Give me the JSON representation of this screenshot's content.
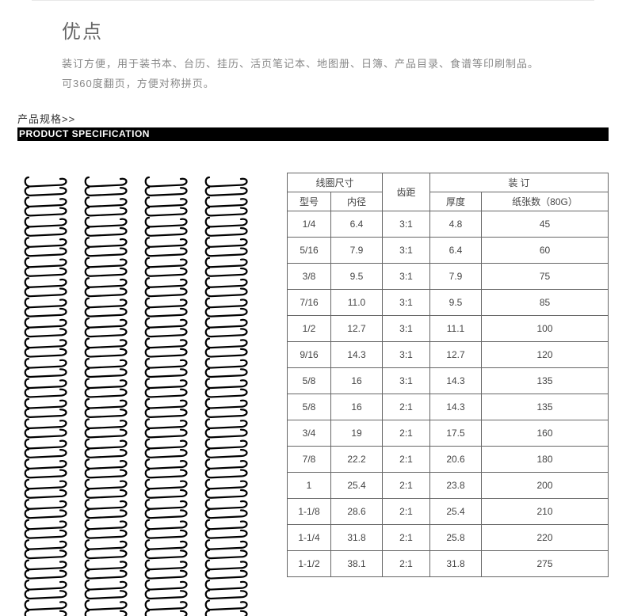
{
  "title": "优点",
  "description_line1": "装订方便，用于装书本、台历、挂历、活页笔记本、地图册、日簿、产品目录、食谱等印刷制品。",
  "description_line2": "可360度翻页，方便对称拼页。",
  "spec_label_cn": "产品规格>>",
  "spec_label_en": "PRODUCT SPECIFICATION",
  "table": {
    "group_headers": {
      "coil": "线圈尺寸",
      "pitch": "齿距",
      "binding": "装 订"
    },
    "sub_headers": {
      "model": "型号",
      "inner": "内径",
      "thickness": "厚度",
      "sheets": "纸张数（80G）"
    },
    "rows": [
      {
        "model": "1/4",
        "inner": "6.4",
        "pitch": "3:1",
        "thickness": "4.8",
        "sheets": "45"
      },
      {
        "model": "5/16",
        "inner": "7.9",
        "pitch": "3:1",
        "thickness": "6.4",
        "sheets": "60"
      },
      {
        "model": "3/8",
        "inner": "9.5",
        "pitch": "3:1",
        "thickness": "7.9",
        "sheets": "75"
      },
      {
        "model": "7/16",
        "inner": "11.0",
        "pitch": "3:1",
        "thickness": "9.5",
        "sheets": "85"
      },
      {
        "model": "1/2",
        "inner": "12.7",
        "pitch": "3:1",
        "thickness": "11.1",
        "sheets": "100"
      },
      {
        "model": "9/16",
        "inner": "14.3",
        "pitch": "3:1",
        "thickness": "12.7",
        "sheets": "120"
      },
      {
        "model": "5/8",
        "inner": "16",
        "pitch": "3:1",
        "thickness": "14.3",
        "sheets": "135"
      },
      {
        "model": "5/8",
        "inner": "16",
        "pitch": "2:1",
        "thickness": "14.3",
        "sheets": "135"
      },
      {
        "model": "3/4",
        "inner": "19",
        "pitch": "2:1",
        "thickness": "17.5",
        "sheets": "160"
      },
      {
        "model": "7/8",
        "inner": "22.2",
        "pitch": "2:1",
        "thickness": "20.6",
        "sheets": "180"
      },
      {
        "model": "1",
        "inner": "25.4",
        "pitch": "2:1",
        "thickness": "23.8",
        "sheets": "200"
      },
      {
        "model": "1-1/8",
        "inner": "28.6",
        "pitch": "2:1",
        "thickness": "25.4",
        "sheets": "210"
      },
      {
        "model": "1-1/4",
        "inner": "31.8",
        "pitch": "2:1",
        "thickness": "25.8",
        "sheets": "220"
      },
      {
        "model": "1-1/2",
        "inner": "38.1",
        "pitch": "2:1",
        "thickness": "31.8",
        "sheets": "275"
      }
    ]
  },
  "coil_svg": {
    "stroke": "#000000",
    "stroke_width": 2.2,
    "loops": 22,
    "columns": 4
  },
  "colors": {
    "title": "#666666",
    "desc": "#888888",
    "bar_bg": "#000000",
    "bar_text": "#ffffff",
    "table_border": "#666666",
    "table_text": "#444444"
  }
}
